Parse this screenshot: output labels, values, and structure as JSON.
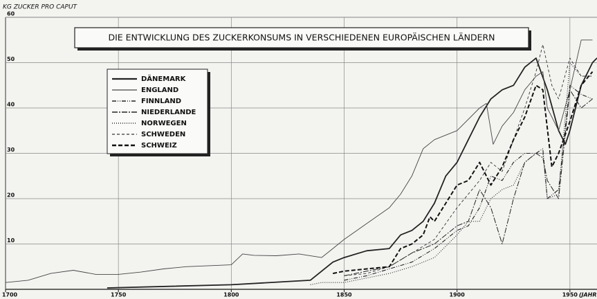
{
  "chart_data": {
    "type": "line",
    "title": "DIE ENTWICKLUNG DES ZUCKERKONSUMS IN VERSCHIEDENEN EUROPÄISCHEN LÄNDERN",
    "y_label": "KG ZUCKER PRO CAPUT",
    "x_label": "(JAHR",
    "xlim": [
      1700,
      1962
    ],
    "xticks": [
      1700,
      1750,
      1800,
      1850,
      1900,
      1950
    ],
    "ylim": [
      0,
      60
    ],
    "yticks": [
      10,
      20,
      30,
      40,
      50,
      60
    ],
    "grid": true,
    "series": [
      {
        "name": "DÄNEMARK",
        "color": "#222222",
        "width": 1.8,
        "dash": "none",
        "x": [
          1745,
          1800,
          1835,
          1845,
          1850,
          1860,
          1870,
          1875,
          1880,
          1885,
          1890,
          1895,
          1900,
          1905,
          1910,
          1915,
          1920,
          1925,
          1930,
          1935,
          1940,
          1945,
          1948,
          1950,
          1955,
          1960,
          1962
        ],
        "values": [
          0.3,
          1,
          2,
          6,
          7,
          8.5,
          9,
          12,
          13,
          15,
          19,
          25,
          28,
          33,
          38,
          42,
          44,
          45,
          49,
          51,
          44,
          35,
          32,
          35,
          45,
          50,
          51
        ]
      },
      {
        "name": "ENGLAND",
        "color": "#444444",
        "width": 0.9,
        "dash": "none",
        "x": [
          1700,
          1710,
          1720,
          1730,
          1740,
          1750,
          1760,
          1770,
          1780,
          1790,
          1800,
          1805,
          1810,
          1820,
          1830,
          1840,
          1845,
          1850,
          1860,
          1870,
          1875,
          1880,
          1885,
          1890,
          1900,
          1910,
          1913,
          1916,
          1920,
          1925,
          1930,
          1935,
          1938,
          1940,
          1945,
          1950,
          1955,
          1960
        ],
        "values": [
          1.5,
          2,
          3.5,
          4.2,
          3.3,
          3.3,
          3.8,
          4.5,
          5,
          5.2,
          5.4,
          7.8,
          7.5,
          7.4,
          7.8,
          7,
          9,
          11,
          14.5,
          18,
          21,
          25,
          31,
          33,
          35,
          40,
          41,
          32,
          36,
          39,
          44,
          47,
          48,
          40,
          35,
          44,
          55,
          55
        ]
      },
      {
        "name": "FINNLAND",
        "color": "#222222",
        "width": 1.1,
        "dash": "6 2 1 2 1 2",
        "x": [
          1850,
          1860,
          1870,
          1880,
          1890,
          1900,
          1905,
          1910,
          1915,
          1920,
          1925,
          1930,
          1935,
          1938,
          1940,
          1945,
          1950,
          1955,
          1960
        ],
        "values": [
          2,
          3,
          4.5,
          6,
          9,
          13,
          14,
          18,
          25,
          24,
          28,
          30,
          30,
          31,
          20,
          22,
          45,
          43,
          42
        ]
      },
      {
        "name": "NIEDERLANDE",
        "color": "#222222",
        "width": 1,
        "dash": "8 2 2 2",
        "x": [
          1850,
          1860,
          1870,
          1880,
          1890,
          1900,
          1905,
          1910,
          1915,
          1920,
          1925,
          1930,
          1935,
          1938,
          1940,
          1945,
          1950,
          1955,
          1960
        ],
        "values": [
          3,
          4,
          5,
          8,
          10,
          14,
          15,
          22,
          18,
          10,
          20,
          28,
          30,
          29,
          24,
          20,
          44,
          40,
          42
        ]
      },
      {
        "name": "NORWEGEN",
        "color": "#222222",
        "width": 1.1,
        "dash": "1 2",
        "x": [
          1835,
          1840,
          1850,
          1860,
          1870,
          1880,
          1890,
          1900,
          1905,
          1910,
          1915,
          1920,
          1925,
          1930,
          1935,
          1938,
          1940,
          1945,
          1950,
          1955,
          1960
        ],
        "values": [
          1,
          1.5,
          1.5,
          2.5,
          3.5,
          5,
          7,
          12,
          15,
          15,
          20,
          22,
          23,
          28,
          30,
          30,
          20,
          21,
          50,
          47,
          47
        ]
      },
      {
        "name": "SCHWEDEN",
        "color": "#333333",
        "width": 0.9,
        "dash": "4 3",
        "x": [
          1850,
          1860,
          1870,
          1880,
          1890,
          1900,
          1905,
          1910,
          1915,
          1920,
          1925,
          1930,
          1935,
          1938,
          1942,
          1945,
          1950,
          1955,
          1960
        ],
        "values": [
          3,
          3.5,
          5,
          8,
          11,
          18,
          21,
          24,
          28,
          26,
          33,
          40,
          48,
          54,
          45,
          42,
          51,
          47,
          47
        ]
      },
      {
        "name": "SCHWEIZ",
        "color": "#111111",
        "width": 2,
        "dash": "6 3",
        "x": [
          1845,
          1850,
          1860,
          1870,
          1875,
          1880,
          1885,
          1888,
          1890,
          1895,
          1900,
          1905,
          1910,
          1915,
          1920,
          1925,
          1930,
          1935,
          1938,
          1942,
          1945,
          1950,
          1955,
          1960
        ],
        "values": [
          3.5,
          4,
          4.5,
          5,
          9,
          10,
          12,
          16,
          15,
          19,
          23,
          24,
          28,
          23,
          27,
          33,
          38,
          45,
          44,
          27,
          30,
          37,
          45,
          48
        ]
      }
    ]
  }
}
